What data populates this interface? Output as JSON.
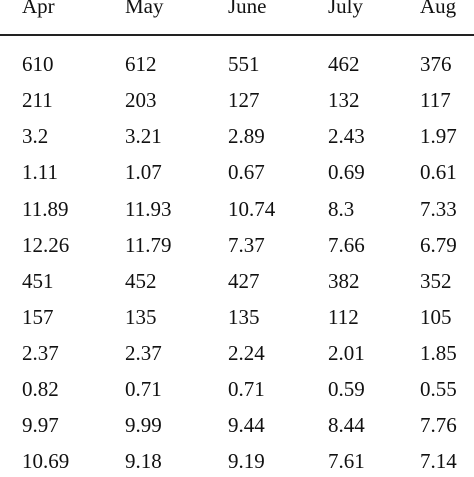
{
  "table": {
    "columns": [
      "Apr",
      "May",
      "June",
      "July",
      "Aug"
    ],
    "rows": [
      [
        "610",
        "612",
        "551",
        "462",
        "376"
      ],
      [
        "211",
        "203",
        "127",
        "132",
        "117"
      ],
      [
        "3.2",
        "3.21",
        "2.89",
        "2.43",
        "1.97"
      ],
      [
        "1.11",
        "1.07",
        "0.67",
        "0.69",
        "0.61"
      ],
      [
        "11.89",
        "11.93",
        "10.74",
        "8.3",
        "7.33"
      ],
      [
        "12.26",
        "11.79",
        "7.37",
        "7.66",
        "6.79"
      ],
      [
        "451",
        "452",
        "427",
        "382",
        "352"
      ],
      [
        "157",
        "135",
        "135",
        "112",
        "105"
      ],
      [
        "2.37",
        "2.37",
        "2.24",
        "2.01",
        "1.85"
      ],
      [
        "0.82",
        "0.71",
        "0.71",
        "0.59",
        "0.55"
      ],
      [
        "9.97",
        "9.99",
        "9.44",
        "8.44",
        "7.76"
      ],
      [
        "10.69",
        "9.18",
        "9.19",
        "7.61",
        "7.14"
      ]
    ]
  }
}
